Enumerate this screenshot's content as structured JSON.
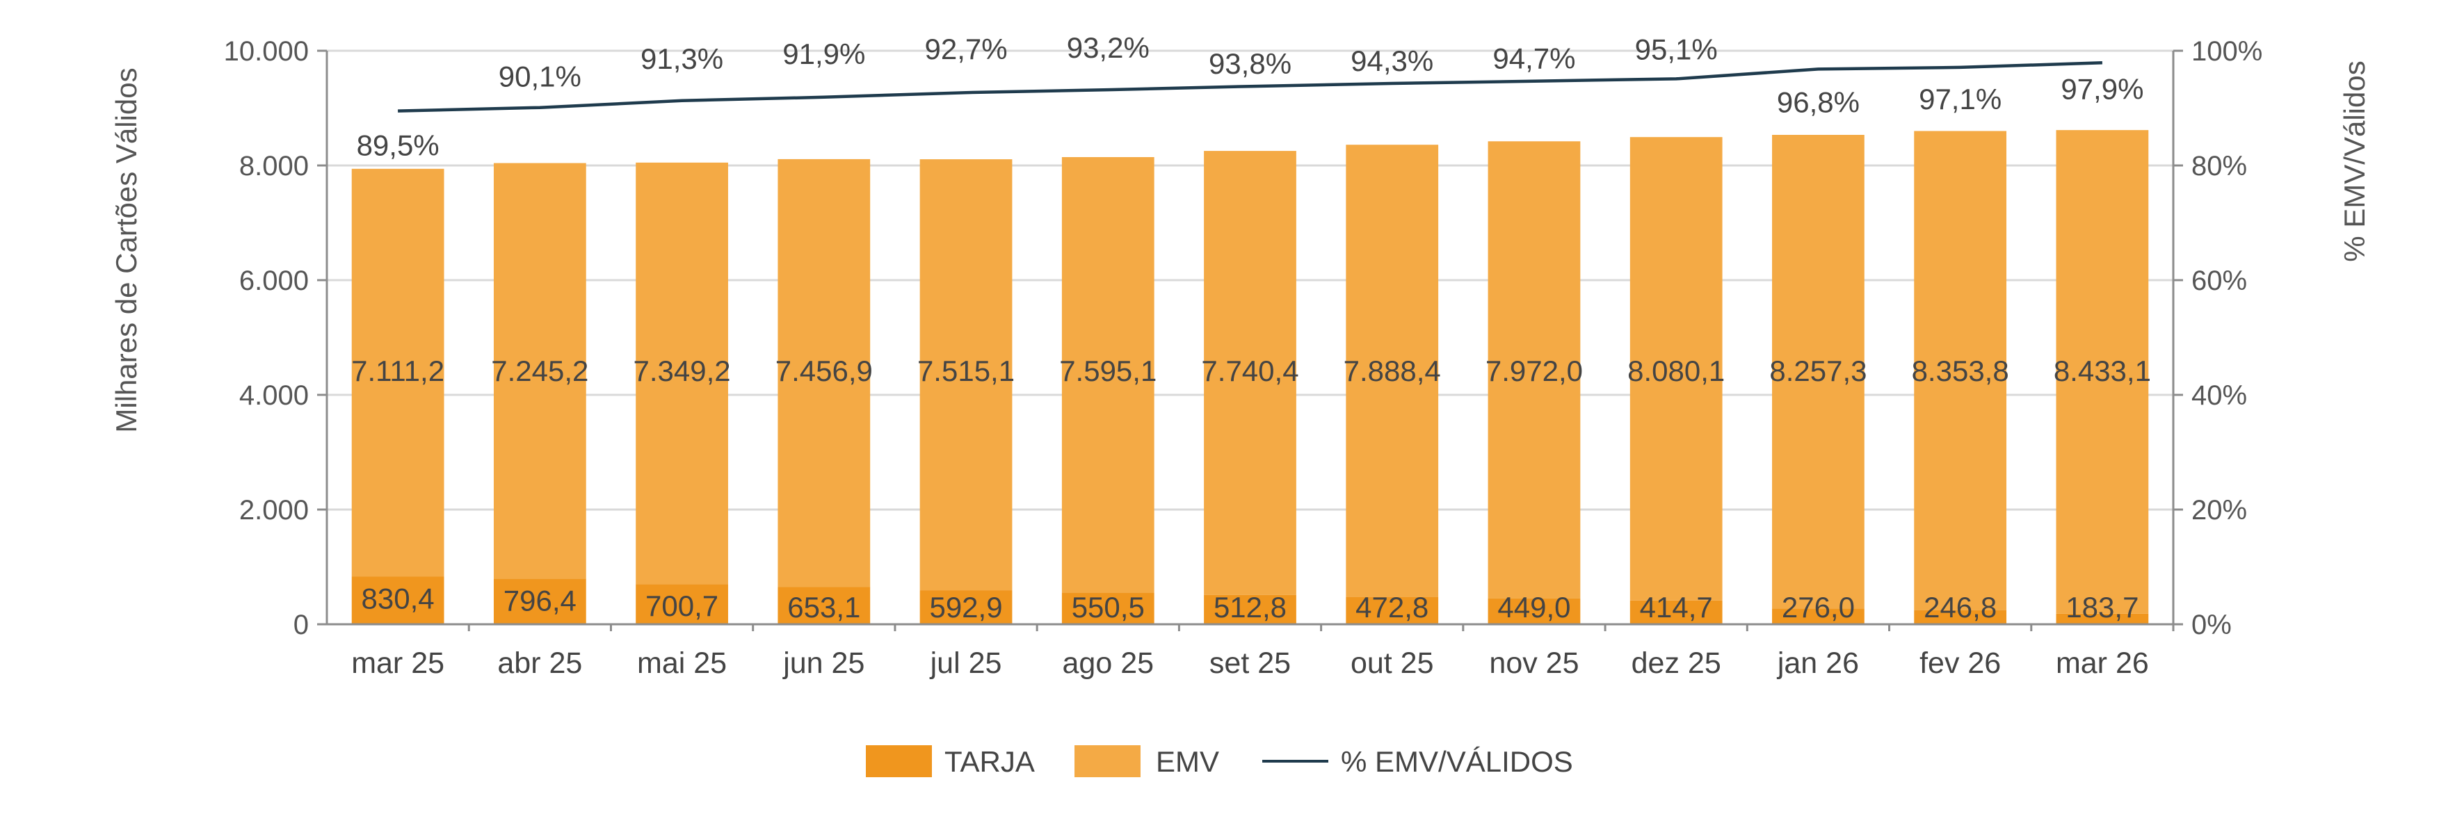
{
  "chart_data": {
    "type": "bar",
    "stacked": true,
    "categories": [
      "mar 25",
      "abr 25",
      "mai 25",
      "jun 25",
      "jul 25",
      "ago 25",
      "set 25",
      "out 25",
      "nov 25",
      "dez 25",
      "jan 26",
      "fev 26",
      "mar 26"
    ],
    "series": [
      {
        "name": "TARJA",
        "axis": "left",
        "color": "#F0961E",
        "values": [
          830.4,
          796.4,
          700.7,
          653.1,
          592.9,
          550.5,
          512.8,
          472.8,
          449.0,
          414.7,
          276.0,
          246.8,
          183.7
        ],
        "labels": [
          "830,4",
          "796,4",
          "700,7",
          "653,1",
          "592,9",
          "550,5",
          "512,8",
          "472,8",
          "449,0",
          "414,7",
          "276,0",
          "246,8",
          "183,7"
        ]
      },
      {
        "name": "EMV",
        "axis": "left",
        "color": "#F4AA45",
        "values": [
          7111.2,
          7245.2,
          7349.2,
          7456.9,
          7515.1,
          7595.1,
          7740.4,
          7888.4,
          7972.0,
          8080.1,
          8257.3,
          8353.8,
          8433.1
        ],
        "labels": [
          "7.111,2",
          "7.245,2",
          "7.349,2",
          "7.456,9",
          "7.515,1",
          "7.595,1",
          "7.740,4",
          "7.888,4",
          "7.972,0",
          "8.080,1",
          "8.257,3",
          "8.353,8",
          "8.433,1"
        ]
      },
      {
        "name": "% EMV/VÁLIDOS",
        "type": "line",
        "axis": "right",
        "color": "#1F3B4D",
        "values": [
          89.5,
          90.1,
          91.3,
          91.9,
          92.7,
          93.2,
          93.8,
          94.3,
          94.7,
          95.1,
          96.8,
          97.1,
          97.9
        ],
        "labels": [
          "89,5%",
          "90,1%",
          "91,3%",
          "91,9%",
          "92,7%",
          "93,2%",
          "93,8%",
          "94,3%",
          "94,7%",
          "95,1%",
          "96,8%",
          "97,1%",
          "97,9%"
        ]
      }
    ],
    "ylabel": "Milhares de Cartões Válidos",
    "y2label": "% EMV/Válidos",
    "ylim": [
      0,
      10000
    ],
    "y2lim": [
      0,
      100
    ],
    "yticks": [
      0,
      2000,
      4000,
      6000,
      8000,
      10000
    ],
    "ytick_labels": [
      "0",
      "2.000",
      "4.000",
      "6.000",
      "8.000",
      "10.000"
    ],
    "y2ticks": [
      0,
      20,
      40,
      60,
      80,
      100
    ],
    "y2tick_labels": [
      "0%",
      "20%",
      "40%",
      "60%",
      "80%",
      "100%"
    ],
    "grid": true,
    "legend": {
      "placement": "bottom-center",
      "items": [
        "TARJA",
        "EMV",
        "% EMV/VÁLIDOS"
      ]
    }
  }
}
